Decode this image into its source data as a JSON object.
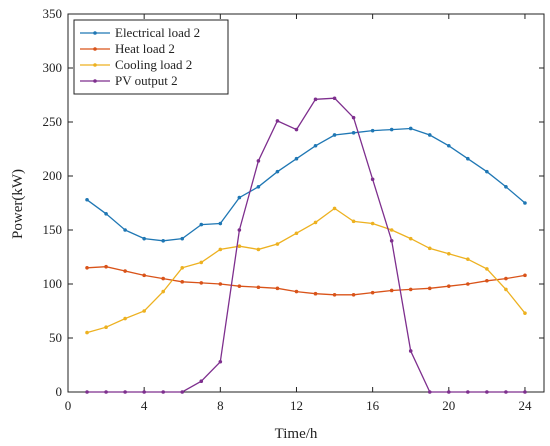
{
  "chart_data": {
    "type": "line",
    "xlabel": "Time/h",
    "ylabel": "Power(kW)",
    "xlim": [
      0,
      25
    ],
    "ylim": [
      0,
      350
    ],
    "xticks": [
      0,
      4,
      8,
      12,
      16,
      20,
      24
    ],
    "yticks": [
      0,
      50,
      100,
      150,
      200,
      250,
      300,
      350
    ],
    "grid": false,
    "legend_position": "top-left",
    "x": [
      1,
      2,
      3,
      4,
      5,
      6,
      7,
      8,
      9,
      10,
      11,
      12,
      13,
      14,
      15,
      16,
      17,
      18,
      19,
      20,
      21,
      22,
      23,
      24
    ],
    "series": [
      {
        "name": "Electrical load 2",
        "color": "#1f77b4",
        "values": [
          178,
          165,
          150,
          142,
          140,
          142,
          155,
          156,
          180,
          190,
          204,
          216,
          228,
          238,
          240,
          242,
          243,
          244,
          238,
          228,
          216,
          204,
          190,
          175
        ]
      },
      {
        "name": "Heat load 2",
        "color": "#d95319",
        "values": [
          115,
          116,
          112,
          108,
          105,
          102,
          101,
          100,
          98,
          97,
          96,
          93,
          91,
          90,
          90,
          92,
          94,
          95,
          96,
          98,
          100,
          103,
          105,
          108
        ]
      },
      {
        "name": "Cooling load 2",
        "color": "#edb120",
        "values": [
          55,
          60,
          68,
          75,
          93,
          115,
          120,
          132,
          135,
          132,
          137,
          147,
          157,
          170,
          158,
          156,
          150,
          142,
          133,
          128,
          123,
          114,
          95,
          73
        ]
      },
      {
        "name": "PV output 2",
        "color": "#7e2f8e",
        "values": [
          0,
          0,
          0,
          0,
          0,
          0,
          10,
          28,
          150,
          214,
          251,
          243,
          271,
          272,
          254,
          197,
          140,
          38,
          0,
          0,
          0,
          0,
          0,
          0
        ]
      }
    ]
  }
}
